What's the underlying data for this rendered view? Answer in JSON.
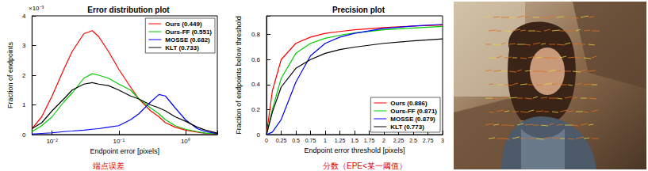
{
  "chart_data": [
    {
      "type": "line",
      "title": "Error distribution plot",
      "x_label": "Endpoint error [pixels]",
      "y_label": "Fraction of endpoints",
      "annotations": [
        {
          "text": "×10⁻³"
        }
      ],
      "caption": "端点误差",
      "log": "x",
      "grid": false,
      "legend": "upper right",
      "xlim": [
        0.005,
        3
      ],
      "xticks": [
        {
          "value": 0.01,
          "label": "10⁻²"
        },
        {
          "value": 0.1,
          "label": "10⁻¹"
        },
        {
          "value": 1,
          "label": "10⁰"
        }
      ],
      "ylim": [
        0,
        0.004
      ],
      "yticks": [
        0,
        {
          "value": 0.001,
          "label": "1"
        },
        {
          "value": 0.002,
          "label": "2"
        },
        {
          "value": 0.003,
          "label": "3"
        },
        {
          "value": 0.004,
          "label": "4"
        }
      ],
      "x": [
        0.005,
        0.007,
        0.01,
        0.015,
        0.02,
        0.03,
        0.04,
        0.05,
        0.07,
        0.1,
        0.15,
        0.2,
        0.3,
        0.4,
        0.5,
        0.7,
        1,
        1.5,
        2,
        3
      ],
      "series": [
        {
          "name": "Ours (0.449)",
          "color": "#ff0000",
          "values": [
            0.0002,
            0.0006,
            0.0013,
            0.0022,
            0.0028,
            0.0034,
            0.0035,
            0.0033,
            0.0028,
            0.0022,
            0.0016,
            0.0012,
            0.0008,
            0.0006,
            0.0004,
            0.00025,
            0.00015,
            8e-05,
            4e-05,
            1e-05
          ]
        },
        {
          "name": "Ours-FF (0.551)",
          "color": "#00cc00",
          "values": [
            0.0001,
            0.0003,
            0.0006,
            0.0011,
            0.0014,
            0.0019,
            0.00205,
            0.002,
            0.0019,
            0.0017,
            0.0015,
            0.0012,
            0.0009,
            0.0007,
            0.0005,
            0.0003,
            0.00018,
            0.0001,
            5e-05,
            2e-05
          ]
        },
        {
          "name": "MOSSE (0.682)",
          "color": "#0000ff",
          "values": [
            2e-05,
            4e-05,
            6e-05,
            0.0001,
            0.00012,
            0.00015,
            0.00018,
            0.0002,
            0.00025,
            0.0003,
            0.0005,
            0.0007,
            0.0011,
            0.00135,
            0.0013,
            0.0009,
            0.0005,
            0.0002,
            0.0001,
            3e-05
          ]
        },
        {
          "name": "KLT (0.733)",
          "color": "#000000",
          "values": [
            0.0002,
            0.0004,
            0.0008,
            0.0012,
            0.0015,
            0.0017,
            0.00175,
            0.0017,
            0.00165,
            0.0015,
            0.0013,
            0.0012,
            0.001,
            0.0009,
            0.0008,
            0.0006,
            0.00045,
            0.00025,
            0.00015,
            5e-05
          ]
        }
      ]
    },
    {
      "type": "line",
      "title": "Precision plot",
      "x_label": "Endpoint error threshold [pixels]",
      "y_label": "Fraction of endpoints below threshold",
      "caption": "分数（EPE<某一阈值）",
      "grid": false,
      "legend": "lower right",
      "xlim": [
        0,
        3
      ],
      "xticks": [
        0,
        0.25,
        0.5,
        0.75,
        1,
        1.25,
        1.5,
        1.75,
        2,
        2.25,
        2.5,
        2.75,
        3
      ],
      "ylim": [
        0,
        0.95
      ],
      "yticks": [
        0,
        0.2,
        0.4,
        0.6,
        0.8
      ],
      "x": [
        0,
        0.1,
        0.25,
        0.5,
        0.75,
        1,
        1.25,
        1.5,
        2,
        2.5,
        3
      ],
      "series": [
        {
          "name": "Ours (0.886)",
          "color": "#ff0000",
          "values": [
            0,
            0.35,
            0.6,
            0.73,
            0.78,
            0.81,
            0.825,
            0.838,
            0.856,
            0.868,
            0.876
          ]
        },
        {
          "name": "Ours-FF (0.871)",
          "color": "#00cc00",
          "values": [
            0,
            0.2,
            0.45,
            0.65,
            0.73,
            0.77,
            0.795,
            0.813,
            0.838,
            0.853,
            0.865
          ]
        },
        {
          "name": "MOSSE (0.879)",
          "color": "#0000ff",
          "values": [
            0,
            0.02,
            0.12,
            0.42,
            0.63,
            0.73,
            0.78,
            0.81,
            0.85,
            0.868,
            0.882
          ]
        },
        {
          "name": "KLT (0.773)",
          "color": "#000000",
          "values": [
            0,
            0.18,
            0.38,
            0.53,
            0.6,
            0.65,
            0.68,
            0.7,
            0.73,
            0.75,
            0.765
          ]
        }
      ]
    }
  ]
}
